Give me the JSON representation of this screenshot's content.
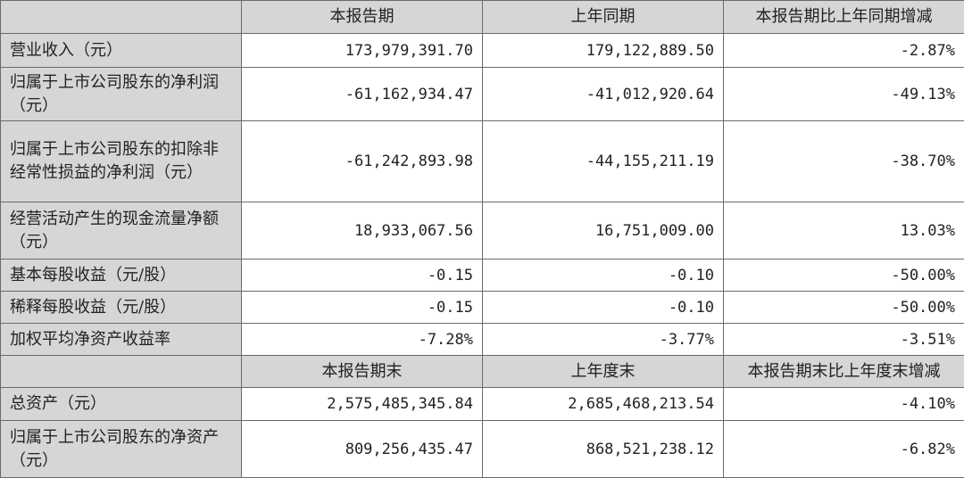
{
  "header1": [
    "",
    "本报告期",
    "上年同期",
    "本报告期比上年同期增减"
  ],
  "rows1": [
    {
      "label": "营业收入（元）",
      "values": [
        "173,979,391.70",
        "179,122,889.50",
        "-2.87%"
      ]
    },
    {
      "label": "归属于上市公司股东的净利润（元）",
      "values": [
        "-61,162,934.47",
        "-41,012,920.64",
        "-49.13%"
      ]
    },
    {
      "label": "归属于上市公司股东的扣除非经常性损益的净利润（元）",
      "values": [
        "-61,242,893.98",
        "-44,155,211.19",
        "-38.70%"
      ]
    },
    {
      "label": "经营活动产生的现金流量净额（元）",
      "values": [
        "18,933,067.56",
        "16,751,009.00",
        "13.03%"
      ]
    },
    {
      "label": "基本每股收益（元/股）",
      "values": [
        "-0.15",
        "-0.10",
        "-50.00%"
      ]
    },
    {
      "label": "稀释每股收益（元/股）",
      "values": [
        "-0.15",
        "-0.10",
        "-50.00%"
      ]
    },
    {
      "label": "加权平均净资产收益率",
      "values": [
        "-7.28%",
        "-3.77%",
        "-3.51%"
      ]
    }
  ],
  "header2": [
    "",
    "本报告期末",
    "上年度末",
    "本报告期末比上年度末增减"
  ],
  "rows2": [
    {
      "label": "总资产（元）",
      "values": [
        "2,575,485,345.84",
        "2,685,468,213.54",
        "-4.10%"
      ]
    },
    {
      "label": "归属于上市公司股东的净资产（元）",
      "values": [
        "809,256,435.47",
        "868,521,238.12",
        "-6.82%"
      ]
    }
  ]
}
